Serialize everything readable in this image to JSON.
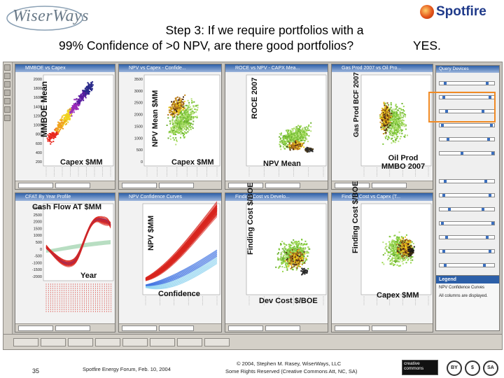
{
  "header": {
    "left_logo_text": "WiserWays",
    "right_logo_text": "Spotfire",
    "title_line1": "Step 3: If we require portfolios with a",
    "title_line2": "99% Confidence of >0 NPV, are there good portfolios?",
    "title_answer": "YES."
  },
  "panels": [
    {
      "id": "mmboe-capex",
      "caption": "MMBOE vs Capex",
      "y_label": "MMBOE Mean",
      "x_label": "Capex $MM",
      "y_ticks": [
        "2000",
        "1800",
        "1600",
        "1400",
        "1200",
        "1000",
        "800",
        "600",
        "400",
        "200"
      ]
    },
    {
      "id": "npv-capex",
      "caption": "NPV vs Capex - Confide...",
      "y_label": "NPV Mean $MM",
      "x_label": "Capex $MM",
      "y_ticks": [
        "3500",
        "3000",
        "2500",
        "2000",
        "1500",
        "1000",
        "500",
        "0"
      ]
    },
    {
      "id": "roce-npv",
      "caption": "ROCE vs NPV - CAPX Mea...",
      "y_label": "ROCE 2007",
      "x_label": "NPV Mean"
    },
    {
      "id": "gasprod-oilprod",
      "caption": "Gas Prod 2007 vs Oil Pro...",
      "y_label": "Gas Prod BCF 2007",
      "x_label": "Oil Prod MMBO 2007"
    },
    {
      "id": "cashflow-year",
      "caption": "CFAT By Year Profile",
      "y_label": "Cash Flow AT $MM",
      "x_label": "Year",
      "y_ticks": [
        "3000",
        "2500",
        "2000",
        "1500",
        "1000",
        "500",
        "0",
        "-500",
        "-1000",
        "-1500",
        "-2000"
      ]
    },
    {
      "id": "npv-confidence",
      "caption": "NPV Confidence Curves",
      "y_label": "NPV $MM",
      "x_label": "Confidence"
    },
    {
      "id": "findingcost-devcost",
      "caption": "Finding Cost vs Develo...",
      "y_label": "Finding Cost $/BOE",
      "x_label": "Dev Cost $/BOE"
    },
    {
      "id": "findingcost-capex",
      "caption": "Finding Cost vs Capex (T...",
      "y_label": "Finding Cost $/BOE",
      "x_label": "Capex $MM"
    }
  ],
  "filters": {
    "title": "Query Devices",
    "legend_title": "Legend",
    "legend_items": [
      "NPV Confidence Curves",
      "All columns are displayed."
    ]
  },
  "footer": {
    "page_number": "35",
    "event": "Spotfire Energy Forum, Feb. 10, 2004",
    "copyright_line1": "© 2004, Stephen M. Rasey, WiserWays, LLC",
    "copyright_line2": "Some Rights Reserved (Creative Commons Att, NC, SA)",
    "cc_badge": "creative commons",
    "cc_icons": [
      "BY",
      "$",
      "SA"
    ]
  },
  "colors": {
    "title_bar_blue": "#2c5fa8",
    "highlight_orange": "#f08a24",
    "scatter_green": "#7ec83a",
    "scatter_yellow": "#f0d21e",
    "scatter_brown": "#8a5a1e",
    "curve_red": "#d8261e",
    "curve_blue": "#3a6fe0",
    "curve_cyan": "#8fd4f0"
  }
}
